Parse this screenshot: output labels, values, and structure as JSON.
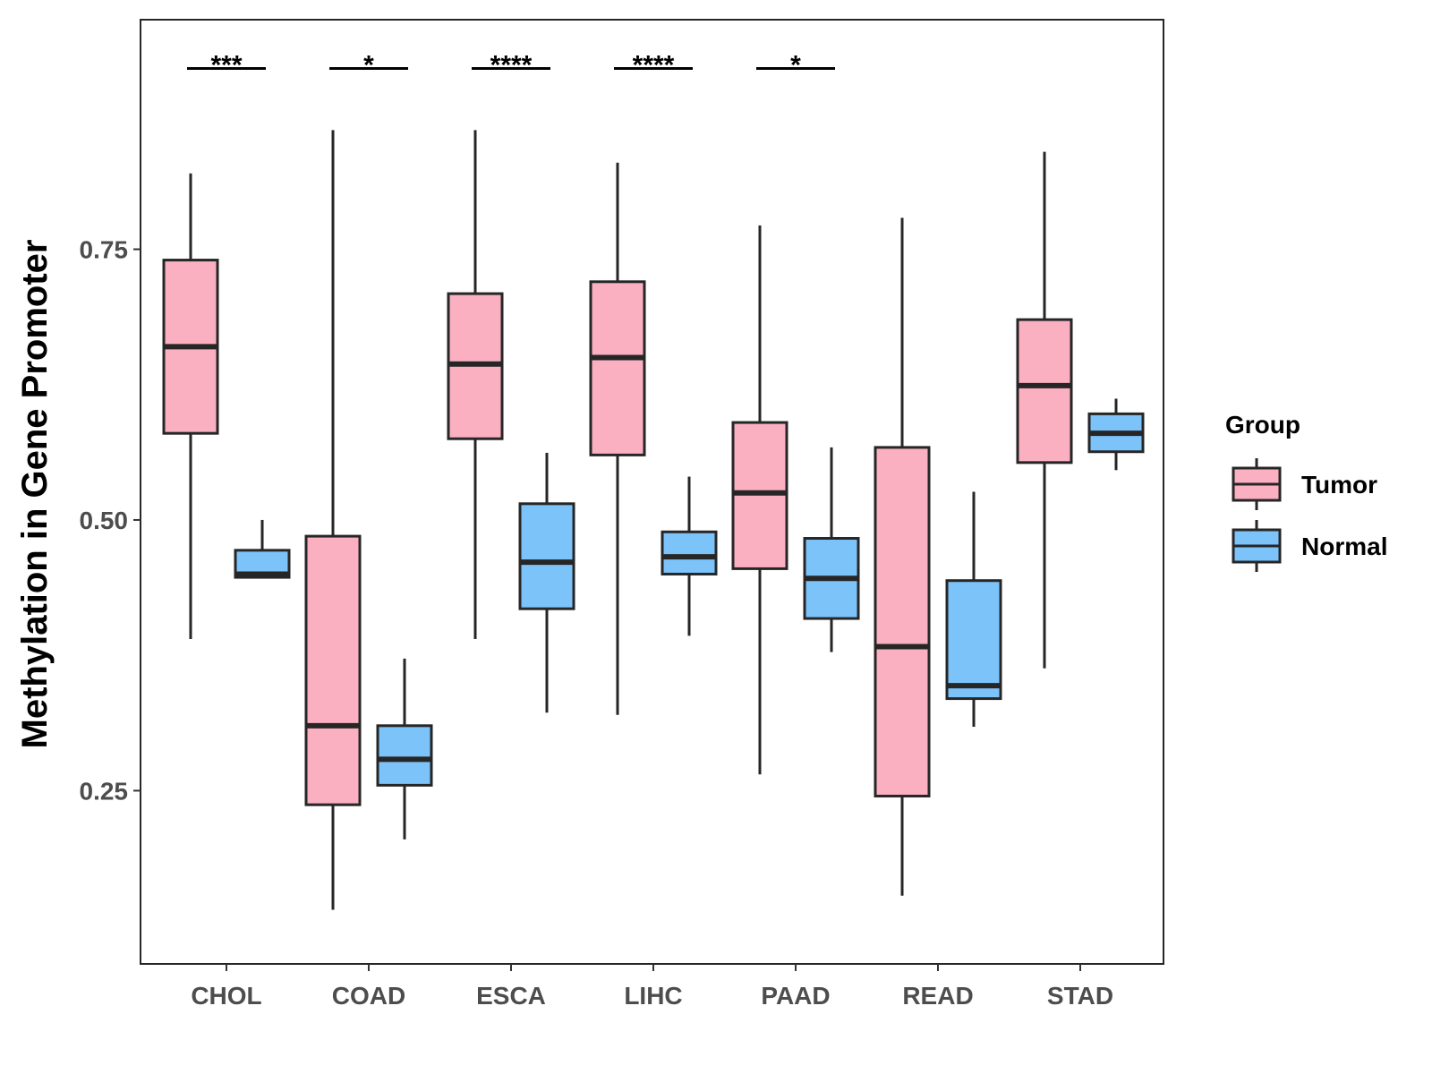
{
  "chart_data": {
    "type": "boxplot",
    "title": "",
    "xlabel": "",
    "ylabel": "Methylation in Gene Promoter",
    "ylim": [
      0.09,
      0.962
    ],
    "yticks": [
      0.25,
      0.5,
      0.75
    ],
    "ytick_labels": [
      "0.25",
      "0.50",
      "0.75"
    ],
    "categories": [
      "CHOL",
      "COAD",
      "ESCA",
      "LIHC",
      "PAAD",
      "READ",
      "STAD"
    ],
    "legend": {
      "title": "Group",
      "position": "right",
      "entries": [
        "Tumor",
        "Normal"
      ]
    },
    "colors": {
      "Tumor": "#fbb0c2",
      "Normal": "#7cc3fa",
      "outline": "#262626"
    },
    "series": [
      {
        "name": "Tumor",
        "boxes": [
          {
            "min": 0.39,
            "q1": 0.58,
            "median": 0.66,
            "q3": 0.74,
            "max": 0.82
          },
          {
            "min": 0.14,
            "q1": 0.237,
            "median": 0.31,
            "q3": 0.485,
            "max": 0.86
          },
          {
            "min": 0.39,
            "q1": 0.575,
            "median": 0.644,
            "q3": 0.709,
            "max": 0.86
          },
          {
            "min": 0.32,
            "q1": 0.56,
            "median": 0.65,
            "q3": 0.72,
            "max": 0.83
          },
          {
            "min": 0.265,
            "q1": 0.455,
            "median": 0.525,
            "q3": 0.59,
            "max": 0.772
          },
          {
            "min": 0.153,
            "q1": 0.245,
            "median": 0.383,
            "q3": 0.567,
            "max": 0.779
          },
          {
            "min": 0.363,
            "q1": 0.553,
            "median": 0.624,
            "q3": 0.685,
            "max": 0.84
          }
        ]
      },
      {
        "name": "Normal",
        "boxes": [
          {
            "min": 0.447,
            "q1": 0.447,
            "median": 0.45,
            "q3": 0.472,
            "max": 0.5
          },
          {
            "min": 0.205,
            "q1": 0.255,
            "median": 0.279,
            "q3": 0.31,
            "max": 0.372
          },
          {
            "min": 0.322,
            "q1": 0.418,
            "median": 0.461,
            "q3": 0.515,
            "max": 0.562
          },
          {
            "min": 0.393,
            "q1": 0.45,
            "median": 0.466,
            "q3": 0.489,
            "max": 0.54
          },
          {
            "min": 0.378,
            "q1": 0.409,
            "median": 0.446,
            "q3": 0.483,
            "max": 0.567
          },
          {
            "min": 0.309,
            "q1": 0.335,
            "median": 0.347,
            "q3": 0.444,
            "max": 0.526
          },
          {
            "min": 0.546,
            "q1": 0.563,
            "median": 0.58,
            "q3": 0.598,
            "max": 0.612
          }
        ]
      }
    ],
    "significance": [
      {
        "category": "CHOL",
        "label": "***"
      },
      {
        "category": "COAD",
        "label": "*"
      },
      {
        "category": "ESCA",
        "label": "****"
      },
      {
        "category": "LIHC",
        "label": "****"
      },
      {
        "category": "PAAD",
        "label": "*"
      }
    ],
    "significance_y": 0.917
  }
}
